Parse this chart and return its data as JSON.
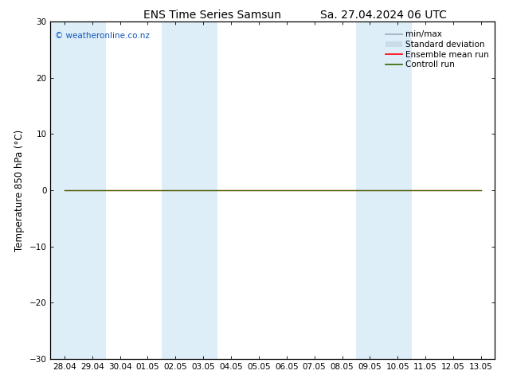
{
  "title_left": "ENS Time Series Samsun",
  "title_right": "Sa. 27.04.2024 06 UTC",
  "ylabel": "Temperature 850 hPa (°C)",
  "watermark": "© weatheronline.co.nz",
  "ylim": [
    -30,
    30
  ],
  "yticks": [
    -30,
    -20,
    -10,
    0,
    10,
    20,
    30
  ],
  "x_labels": [
    "28.04",
    "29.04",
    "30.04",
    "01.05",
    "02.05",
    "03.05",
    "04.05",
    "05.05",
    "06.05",
    "07.05",
    "08.05",
    "09.05",
    "10.05",
    "11.05",
    "12.05",
    "13.05"
  ],
  "num_points": 16,
  "control_run_value": 0.0,
  "ensemble_mean_value": 0.0,
  "shaded_columns": [
    0,
    1,
    4,
    5,
    11,
    12
  ],
  "shade_color": "#ddeef9",
  "background_color": "#ffffff",
  "control_run_color": "#336600",
  "ensemble_mean_color": "#ff0000",
  "std_dev_color": "#c8dcea",
  "minmax_color": "#9ab0be",
  "legend_labels": [
    "min/max",
    "Standard deviation",
    "Ensemble mean run",
    "Controll run"
  ],
  "title_fontsize": 10,
  "label_fontsize": 8.5,
  "tick_fontsize": 7.5,
  "watermark_fontsize": 7.5,
  "legend_fontsize": 7.5
}
